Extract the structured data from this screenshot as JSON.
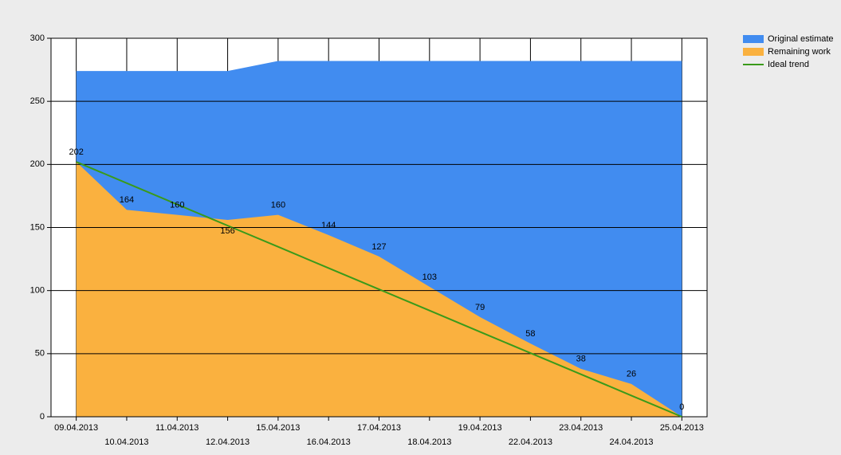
{
  "chart_data": {
    "type": "area",
    "categories": [
      "09.04.2013",
      "10.04.2013",
      "11.04.2013",
      "12.04.2013",
      "15.04.2013",
      "16.04.2013",
      "17.04.2013",
      "18.04.2013",
      "19.04.2013",
      "22.04.2013",
      "23.04.2013",
      "24.04.2013",
      "25.04.2013"
    ],
    "series": [
      {
        "name": "Original estimate",
        "color": "#418cf0",
        "kind": "area",
        "values": [
          274,
          274,
          274,
          274,
          282,
          282,
          282,
          282,
          282,
          282,
          282,
          282,
          282
        ]
      },
      {
        "name": "Remaining work",
        "color": "#fab13f",
        "kind": "area",
        "values": [
          202,
          164,
          160,
          156,
          160,
          144,
          127,
          103,
          79,
          58,
          38,
          26,
          0
        ]
      },
      {
        "name": "Ideal trend",
        "color": "#3a9a1a",
        "kind": "line",
        "values": [
          202,
          185.2,
          168.3,
          151.5,
          134.7,
          117.8,
          101,
          84.2,
          67.3,
          50.5,
          33.7,
          16.8,
          0
        ]
      }
    ],
    "ylim": [
      0,
      300
    ],
    "yticks": [
      0,
      50,
      100,
      150,
      200,
      250,
      300
    ],
    "grid": true,
    "legend": "top-right"
  }
}
